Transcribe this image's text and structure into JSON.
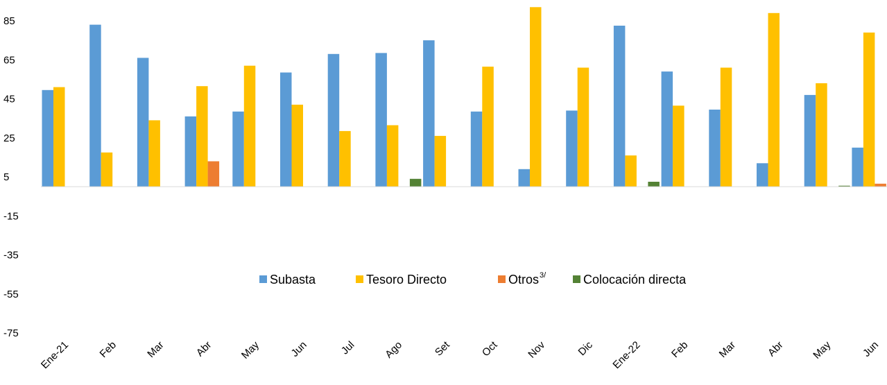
{
  "chart_data": {
    "type": "bar",
    "categories": [
      "Ene-21",
      "Feb",
      "Mar",
      "Abr",
      "May",
      "Jun",
      "Jul",
      "Ago",
      "Set",
      "Oct",
      "Nov",
      "Dic",
      "Ene-22",
      "Feb",
      "Mar",
      "Abr",
      "May",
      "Jun"
    ],
    "series": [
      {
        "name": "Subasta",
        "color": "#5B9BD5",
        "values": [
          49.5,
          83,
          66,
          36,
          38.5,
          58.5,
          68,
          68.5,
          75,
          38.5,
          9,
          39,
          82.5,
          59,
          39.5,
          12,
          47,
          20
        ]
      },
      {
        "name": "Tesoro Directo",
        "color": "#FFC000",
        "values": [
          51,
          17.5,
          34,
          51.5,
          62,
          42,
          28.5,
          31.5,
          26,
          61.5,
          92,
          61,
          16,
          41.5,
          61,
          89,
          53,
          79
        ]
      },
      {
        "name": "Otros",
        "name_sup": "3/",
        "color": "#ED7D31",
        "values": [
          0,
          0,
          0,
          13,
          0,
          0,
          0,
          0,
          0,
          0,
          0,
          0,
          0,
          0,
          0,
          0,
          0,
          1.5
        ]
      },
      {
        "name": "Colocación directa",
        "color": "#548235",
        "values": [
          0,
          0,
          0,
          0,
          0,
          0,
          0,
          4,
          0,
          0,
          0,
          0,
          2.5,
          0,
          0,
          0,
          0.5,
          0
        ]
      }
    ],
    "y_ticks": [
      85,
      65,
      45,
      25,
      5,
      -15,
      -35,
      -55,
      -75
    ],
    "ylim": [
      -75,
      95
    ],
    "title": "",
    "xlabel": "",
    "ylabel": "",
    "grid": false,
    "legend_position": "center"
  }
}
